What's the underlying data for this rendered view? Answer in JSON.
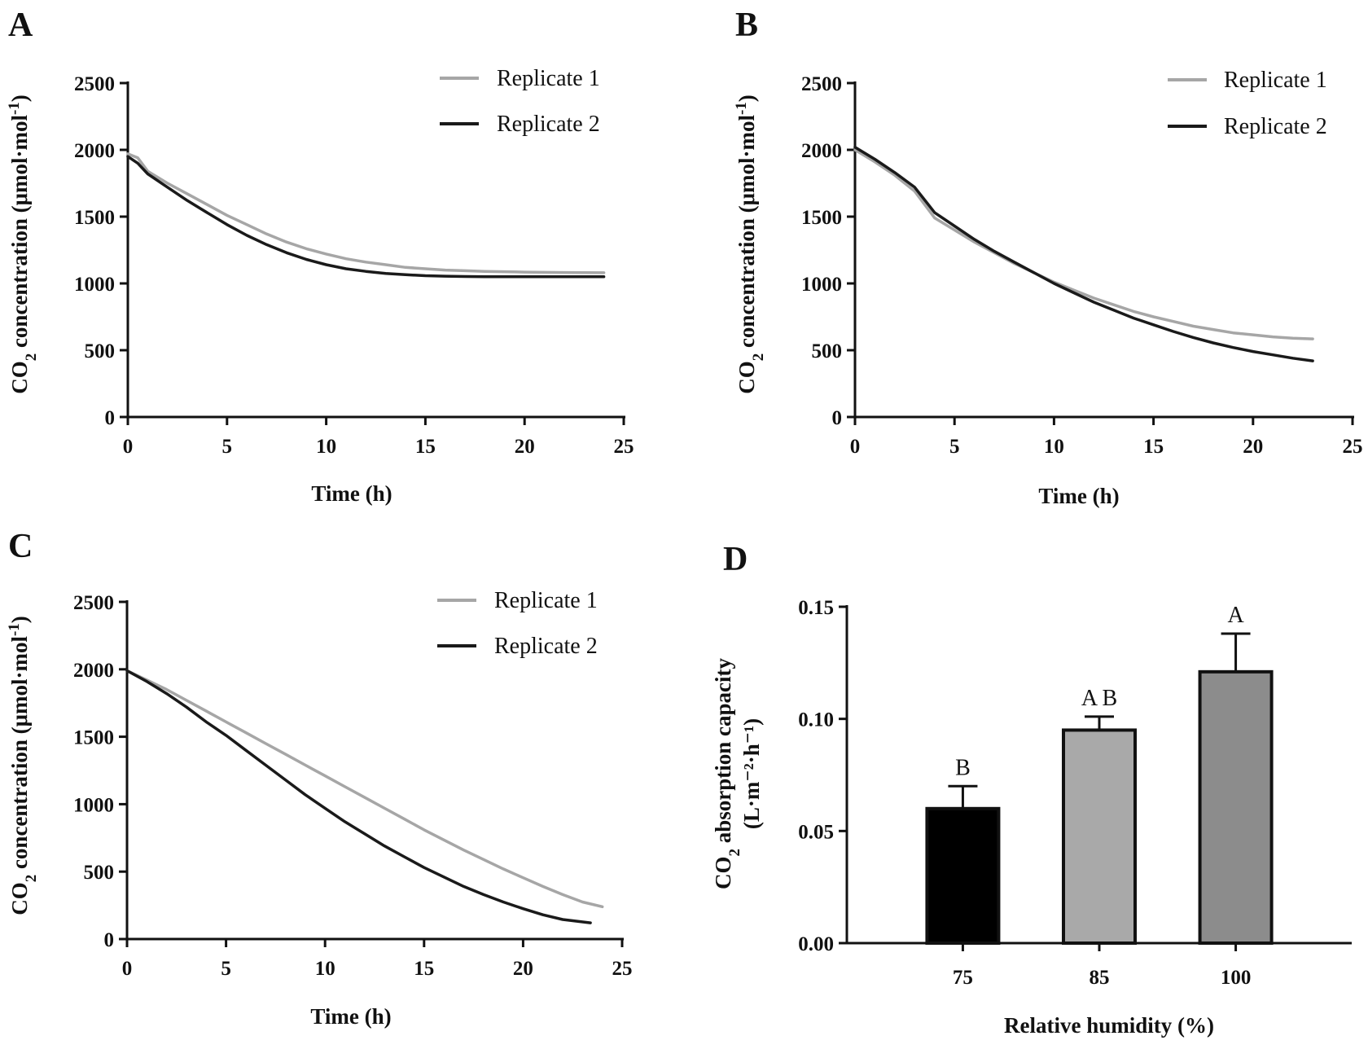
{
  "figure": {
    "colors": {
      "replicate_1": "#a6a6a6",
      "replicate_2": "#1a1a1a",
      "axis": "#111111",
      "bar_75": "#000000",
      "bar_85": "#a9a9a9",
      "bar_100": "#8c8c8c"
    }
  },
  "chart_data": [
    {
      "panel": "A",
      "type": "line",
      "title": "",
      "xlabel": "Time (h)",
      "ylabel_main": "CO",
      "ylabel_sub": "2",
      "ylabel_rest": " concentration (μmol·mol",
      "ylabel_sup": "-1",
      "ylabel_close": ")",
      "xlim": [
        0,
        25
      ],
      "ylim": [
        0,
        2500
      ],
      "xticks": [
        "0",
        "5",
        "10",
        "15",
        "20",
        "25"
      ],
      "yticks": [
        "0",
        "500",
        "1000",
        "1500",
        "2000",
        "2500"
      ],
      "legend_position": "top-right",
      "series": [
        {
          "name": "Replicate 1",
          "x": [
            0,
            0.5,
            1,
            2,
            3,
            4,
            5,
            6,
            7,
            8,
            9,
            10,
            11,
            12,
            13,
            14,
            15,
            16,
            17,
            18,
            19,
            20,
            21,
            22,
            23,
            24
          ],
          "y": [
            1970,
            1940,
            1840,
            1750,
            1670,
            1590,
            1510,
            1440,
            1370,
            1310,
            1260,
            1220,
            1185,
            1160,
            1140,
            1120,
            1110,
            1100,
            1095,
            1090,
            1088,
            1085,
            1083,
            1082,
            1081,
            1080
          ]
        },
        {
          "name": "Replicate 2",
          "x": [
            0,
            0.5,
            1,
            2,
            3,
            4,
            5,
            6,
            7,
            8,
            9,
            10,
            11,
            12,
            13,
            14,
            15,
            16,
            17,
            18,
            19,
            20,
            21,
            22,
            23,
            24
          ],
          "y": [
            1950,
            1900,
            1820,
            1720,
            1620,
            1530,
            1440,
            1360,
            1290,
            1230,
            1180,
            1140,
            1110,
            1090,
            1075,
            1065,
            1058,
            1054,
            1052,
            1050,
            1050,
            1050,
            1050,
            1050,
            1050,
            1050
          ]
        }
      ]
    },
    {
      "panel": "B",
      "type": "line",
      "title": "",
      "xlabel": "Time (h)",
      "ylabel_main": "CO",
      "ylabel_sub": "2",
      "ylabel_rest": " concentration (μmol·mol",
      "ylabel_sup": "-1",
      "ylabel_close": ")",
      "xlim": [
        0,
        25
      ],
      "ylim": [
        0,
        2500
      ],
      "xticks": [
        "0",
        "5",
        "10",
        "15",
        "20",
        "25"
      ],
      "yticks": [
        "0",
        "500",
        "1000",
        "1500",
        "2000",
        "2500"
      ],
      "legend_position": "top-right",
      "series": [
        {
          "name": "Replicate 1",
          "x": [
            0,
            1,
            2,
            3,
            4,
            5,
            6,
            7,
            8,
            9,
            10,
            11,
            12,
            13,
            14,
            15,
            16,
            17,
            18,
            19,
            20,
            21,
            22,
            23
          ],
          "y": [
            2000,
            1910,
            1810,
            1690,
            1490,
            1400,
            1310,
            1230,
            1150,
            1080,
            1010,
            950,
            890,
            840,
            790,
            750,
            715,
            680,
            655,
            630,
            615,
            600,
            590,
            585
          ]
        },
        {
          "name": "Replicate 2",
          "x": [
            0,
            1,
            2,
            3,
            4,
            5,
            6,
            7,
            8,
            9,
            10,
            11,
            12,
            13,
            14,
            15,
            16,
            17,
            18,
            19,
            20,
            21,
            22,
            23
          ],
          "y": [
            2020,
            1930,
            1830,
            1720,
            1530,
            1430,
            1330,
            1240,
            1160,
            1080,
            1000,
            930,
            860,
            800,
            740,
            690,
            640,
            595,
            555,
            520,
            490,
            465,
            440,
            420
          ]
        }
      ]
    },
    {
      "panel": "C",
      "type": "line",
      "title": "",
      "xlabel": "Time (h)",
      "ylabel_main": "CO",
      "ylabel_sub": "2",
      "ylabel_rest": " concentration (μmol·mol",
      "ylabel_sup": "-1",
      "ylabel_close": ")",
      "xlim": [
        0,
        25
      ],
      "ylim": [
        0,
        2500
      ],
      "xticks": [
        "0",
        "5",
        "10",
        "15",
        "20",
        "25"
      ],
      "yticks": [
        "0",
        "500",
        "1000",
        "1500",
        "2000",
        "2500"
      ],
      "legend_position": "top-right",
      "series": [
        {
          "name": "Replicate 1",
          "x": [
            0,
            1,
            2,
            3,
            4,
            5,
            6,
            7,
            8,
            9,
            10,
            11,
            12,
            13,
            14,
            15,
            16,
            17,
            18,
            19,
            20,
            21,
            22,
            23,
            24
          ],
          "y": [
            1990,
            1920,
            1850,
            1770,
            1690,
            1610,
            1530,
            1450,
            1370,
            1290,
            1210,
            1130,
            1050,
            970,
            890,
            810,
            735,
            660,
            590,
            520,
            455,
            390,
            330,
            275,
            240
          ]
        },
        {
          "name": "Replicate 2",
          "x": [
            0,
            1,
            2,
            3,
            4,
            5,
            6,
            7,
            8,
            9,
            10,
            11,
            12,
            13,
            14,
            15,
            16,
            17,
            18,
            19,
            20,
            21,
            22,
            23.4
          ],
          "y": [
            1990,
            1910,
            1820,
            1720,
            1610,
            1510,
            1400,
            1290,
            1180,
            1070,
            970,
            870,
            780,
            690,
            610,
            530,
            460,
            390,
            330,
            275,
            225,
            180,
            145,
            120
          ]
        }
      ]
    },
    {
      "panel": "D",
      "type": "bar",
      "title": "",
      "xlabel": "Relative humidity (%)",
      "ylabel_line1_main": "CO",
      "ylabel_line1_sub": "2",
      "ylabel_line1_rest": " absorption capacity",
      "ylabel_line2": "(L·m⁻²·h⁻¹)",
      "categories": [
        "75",
        "85",
        "100"
      ],
      "values": [
        0.06,
        0.095,
        0.121
      ],
      "errors": [
        0.01,
        0.006,
        0.017
      ],
      "significance": [
        "B",
        "A B",
        "A"
      ],
      "ylim": [
        0,
        0.15
      ],
      "yticks": [
        "0.00",
        "0.05",
        "0.10",
        "0.15"
      ]
    }
  ]
}
